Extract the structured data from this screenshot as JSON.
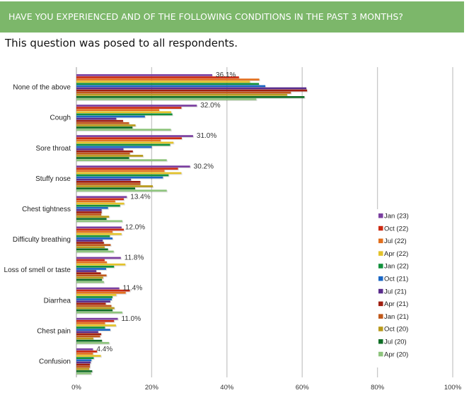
{
  "header": {
    "title": "HAVE YOU EXPERIENCED AND OF THE FOLLOWING CONDITIONS IN THE PAST 3 MONTHS?",
    "color": "#7cb76a"
  },
  "subtitle": "This question was posed to all respondents.",
  "chart_data": {
    "type": "bar",
    "orientation": "horizontal",
    "title": "",
    "xlabel": "",
    "ylabel": "",
    "xlim": [
      0,
      100
    ],
    "x_ticks": [
      "0%",
      "20%",
      "40%",
      "60%",
      "80%",
      "100%"
    ],
    "grid": true,
    "legend_position": "right",
    "categories": [
      "None of the above",
      "Cough",
      "Sore throat",
      "Stuffy nose",
      "Chest tightness",
      "Difficulty breathing",
      "Loss of smell or taste",
      "Diarrhea",
      "Chest pain",
      "Confusion"
    ],
    "data_labels": [
      "36.1%",
      "32.0%",
      "31.0%",
      "30.2%",
      "13.4%",
      "12.0%",
      "11.8%",
      "11.4%",
      "11.0%",
      "4.4%"
    ],
    "series": [
      {
        "name": "Jan (23)",
        "color": "#7b3fa0",
        "values": [
          36.1,
          32.0,
          31.0,
          30.2,
          13.4,
          12.0,
          11.8,
          11.4,
          11.0,
          4.4
        ]
      },
      {
        "name": "Oct (22)",
        "color": "#cc2a12",
        "values": [
          43.2,
          27.9,
          28.0,
          27.0,
          12.6,
          12.6,
          7.5,
          14.2,
          10.0,
          5.5
        ]
      },
      {
        "name": "Jul (22)",
        "color": "#e2701e",
        "values": [
          48.6,
          22.0,
          22.4,
          23.4,
          10.3,
          9.6,
          8.1,
          13.1,
          7.6,
          4.4
        ]
      },
      {
        "name": "Apr (22)",
        "color": "#e3c22a",
        "values": [
          46.1,
          25.2,
          25.8,
          27.9,
          12.7,
          12.0,
          13.0,
          10.6,
          10.5,
          6.5
        ]
      },
      {
        "name": "Jan (22)",
        "color": "#12913c",
        "values": [
          48.5,
          25.5,
          24.9,
          24.5,
          11.6,
          8.9,
          10.0,
          9.6,
          7.6,
          4.6
        ]
      },
      {
        "name": "Oct (21)",
        "color": "#1b67c4",
        "values": [
          50.2,
          18.2,
          20.0,
          23.0,
          8.4,
          9.6,
          7.9,
          9.4,
          9.0,
          4.0
        ]
      },
      {
        "name": "Jul (21)",
        "color": "#5a2d8c",
        "values": [
          61.1,
          10.6,
          12.5,
          14.5,
          6.7,
          7.0,
          5.3,
          9.0,
          5.8,
          3.8
        ]
      },
      {
        "name": "Apr (21)",
        "color": "#a01e10",
        "values": [
          61.3,
          12.4,
          15.0,
          17.0,
          6.7,
          7.3,
          6.5,
          7.8,
          6.6,
          3.6
        ]
      },
      {
        "name": "Jan (21)",
        "color": "#c0581a",
        "values": [
          57.0,
          14.0,
          14.2,
          17.0,
          6.6,
          9.1,
          8.0,
          9.3,
          6.3,
          3.6
        ]
      },
      {
        "name": "Oct (20)",
        "color": "#b89a1c",
        "values": [
          56.0,
          15.7,
          17.7,
          20.3,
          8.7,
          7.5,
          7.1,
          10.1,
          4.5,
          3.4
        ]
      },
      {
        "name": "Jul (20)",
        "color": "#0f6e26",
        "values": [
          60.6,
          14.9,
          14.0,
          15.6,
          8.0,
          8.4,
          6.8,
          9.6,
          6.8,
          4.2
        ]
      },
      {
        "name": "Apr (20)",
        "color": "#8ec47d",
        "values": [
          47.8,
          25.1,
          24.0,
          24.0,
          12.2,
          9.9,
          7.3,
          12.2,
          8.7,
          3.9
        ]
      }
    ]
  }
}
